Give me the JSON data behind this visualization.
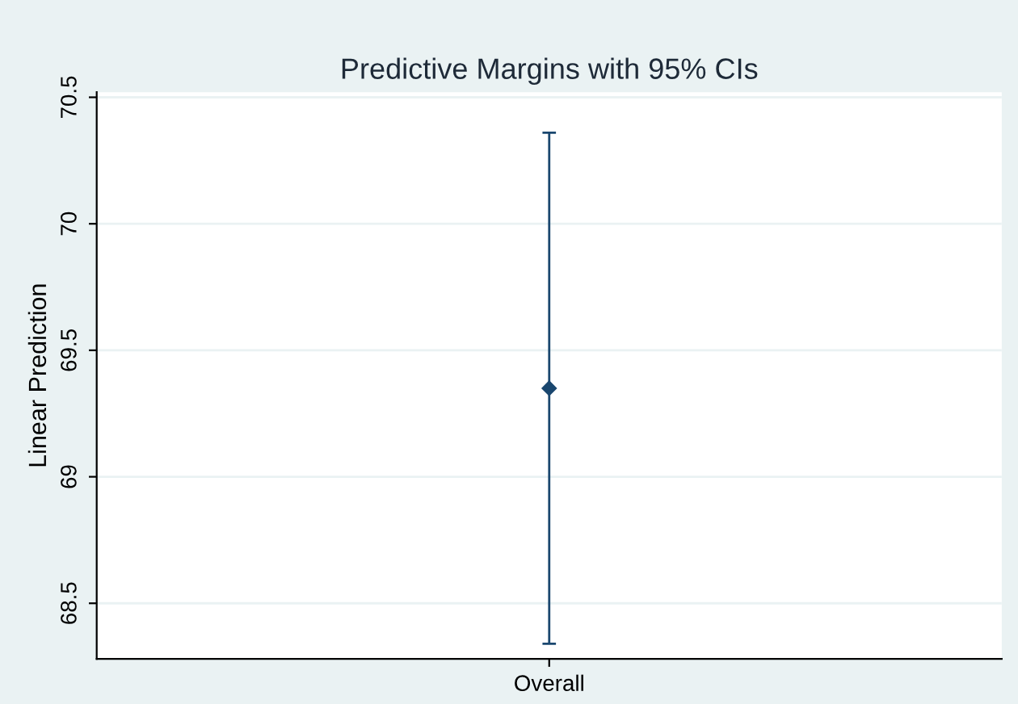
{
  "chart_data": {
    "type": "scatter",
    "title": "Predictive Margins with 95% CIs",
    "ylabel": "Linear Prediction",
    "categories": [
      "Overall"
    ],
    "series": [
      {
        "color": "#1a476f",
        "values": [
          69.35
        ],
        "errors": [
          1.01
        ]
      }
    ],
    "marker": "diamond",
    "ylim": [
      68.28,
      70.52
    ],
    "yticks": [
      68.5,
      69,
      69.5,
      70,
      70.5
    ],
    "grid": "y",
    "legend": false
  }
}
